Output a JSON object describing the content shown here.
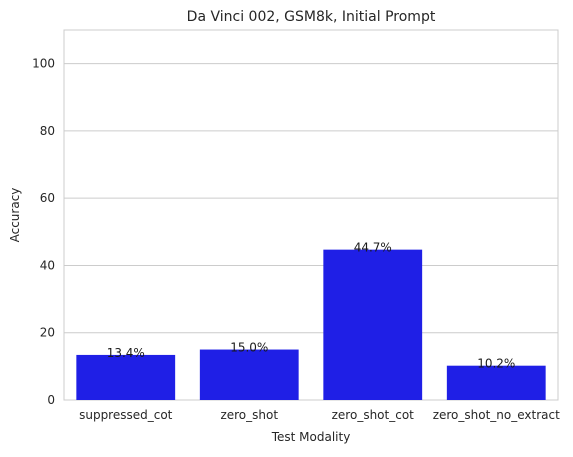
{
  "chart_data": {
    "type": "bar",
    "title": "Da Vinci 002, GSM8k, Initial Prompt",
    "xlabel": "Test Modality",
    "ylabel": "Accuracy",
    "categories": [
      "suppressed_cot",
      "zero_shot",
      "zero_shot_cot",
      "zero_shot_no_extract"
    ],
    "values": [
      13.4,
      15.0,
      44.7,
      10.2
    ],
    "data_labels": [
      "13.4%",
      "15.0%",
      "44.7%",
      "10.2%"
    ],
    "ylim": [
      0,
      110
    ],
    "yticks": [
      0,
      20,
      40,
      60,
      80,
      100
    ],
    "ytick_labels": [
      "0",
      "20",
      "40",
      "60",
      "80",
      "100"
    ],
    "grid": "horizontal",
    "bar_color": "#1f1fe6",
    "grid_color": "#cccccc"
  }
}
